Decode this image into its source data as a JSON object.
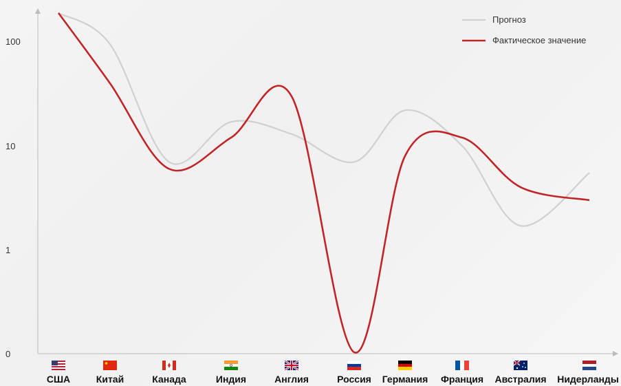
{
  "chart_data": {
    "type": "line",
    "title": "",
    "xlabel": "",
    "ylabel": "",
    "y_scale": "log",
    "y_ticks": [
      "0",
      "1",
      "10",
      "100"
    ],
    "categories": [
      "США",
      "Китай",
      "Канада",
      "Индия",
      "Англия",
      "Россия",
      "Германия",
      "Франция",
      "Австралия",
      "Нидерланды"
    ],
    "flags": [
      "us-flag-icon",
      "cn-flag-icon",
      "ca-flag-icon",
      "in-flag-icon",
      "gb-flag-icon",
      "ru-flag-icon",
      "de-flag-icon",
      "fr-flag-icon",
      "au-flag-icon",
      "nl-flag-icon"
    ],
    "legend_position": "top-right",
    "grid": false,
    "series": [
      {
        "name": "Прогноз",
        "color": "#d0d0d0",
        "values": [
          190,
          95,
          7,
          17,
          13,
          7,
          22,
          10,
          1.7,
          5.5
        ]
      },
      {
        "name": "Фактическое значение",
        "color": "#c0252a",
        "values": [
          190,
          40,
          6,
          12,
          30,
          0.01,
          8,
          12,
          4,
          3
        ]
      }
    ]
  }
}
